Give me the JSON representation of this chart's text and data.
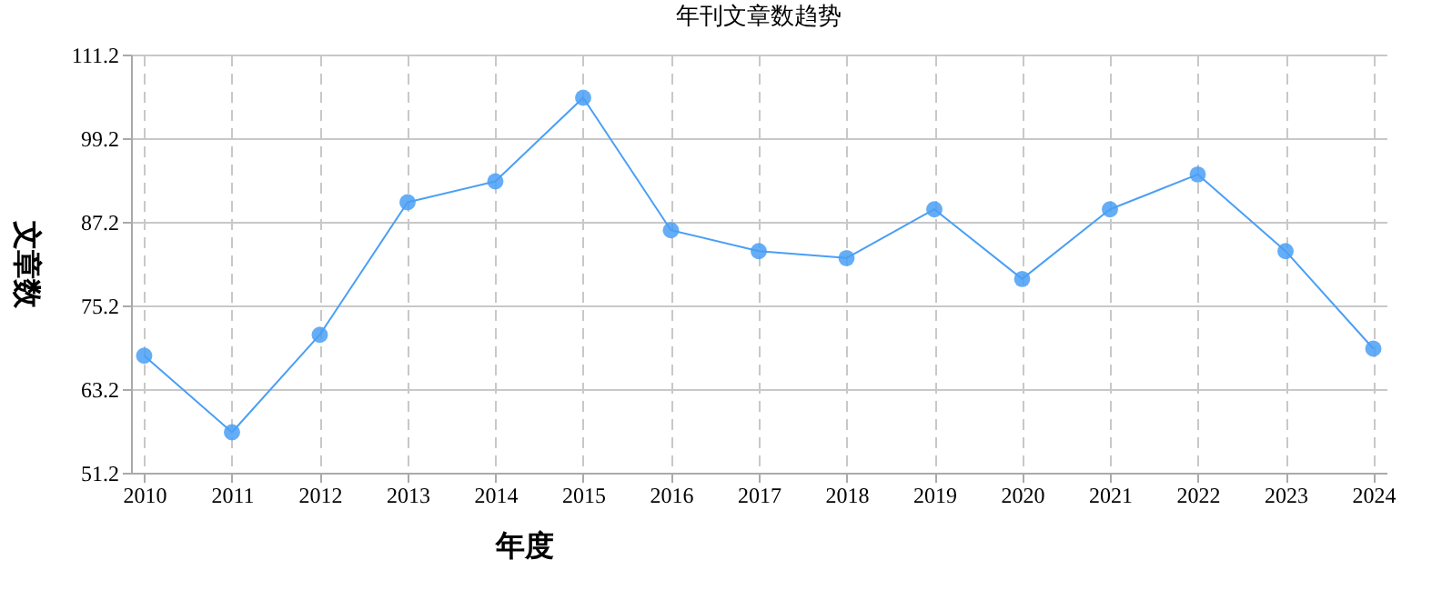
{
  "chart_data": {
    "type": "line",
    "title": "年刊文章数趋势",
    "xlabel": "年度",
    "ylabel": "文章数",
    "categories": [
      "2010",
      "2011",
      "2012",
      "2013",
      "2014",
      "2015",
      "2016",
      "2017",
      "2018",
      "2019",
      "2020",
      "2021",
      "2022",
      "2023",
      "2024"
    ],
    "series": [
      {
        "color": "#4a9ff5",
        "values": [
          68,
          57,
          71,
          90,
          93,
          105,
          86,
          83,
          82,
          89,
          79,
          89,
          94,
          83,
          69
        ]
      }
    ],
    "ylim": [
      51.2,
      111.2
    ],
    "yticks": [
      51.2,
      63.2,
      75.2,
      87.2,
      99.2,
      111.2
    ],
    "grid": true,
    "marker": "circle",
    "line_style": "solid"
  }
}
